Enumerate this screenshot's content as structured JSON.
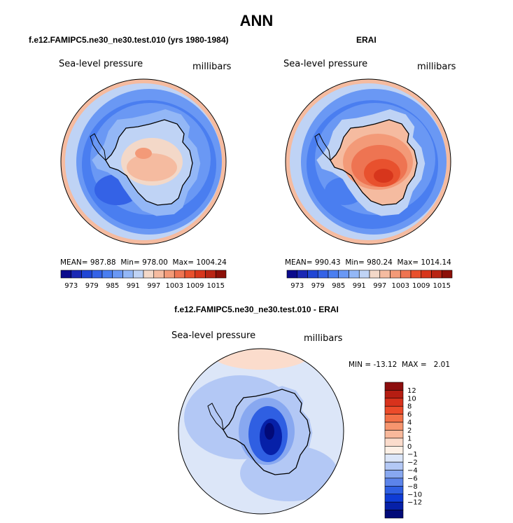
{
  "chart_data": {
    "type": "heatmap",
    "title": "ANN",
    "panels": [
      {
        "title": "f.e12.FAMIPC5.ne30_ne30.test.010 (yrs 1980-1984)",
        "variable": "Sea-level pressure",
        "units": "millibars",
        "mean_label": "MEAN=",
        "mean": "987.88",
        "min_label": "Min=",
        "min": "978.00",
        "max_label": "Max=",
        "max": "1004.24"
      },
      {
        "title": "ERAI",
        "variable": "Sea-level pressure",
        "units": "millibars",
        "mean_label": "MEAN=",
        "mean": "990.43",
        "min_label": "Min=",
        "min": "980.24",
        "max_label": "Max=",
        "max": "1014.14"
      },
      {
        "title": "f.e12.FAMIPC5.ne30_ne30.test.010 - ERAI",
        "variable": "Sea-level pressure",
        "units": "millibars",
        "min_label": "MIN =",
        "min": "-13.12",
        "max_label": "MAX =",
        "max": "2.01"
      }
    ],
    "colorbar_main": {
      "labels": [
        "973",
        "979",
        "985",
        "991",
        "997",
        "1003",
        "1009",
        "1015"
      ],
      "levels": [
        970,
        973,
        976,
        979,
        982,
        985,
        988,
        991,
        994,
        997,
        1000,
        1003,
        1006,
        1009,
        1012,
        1015,
        1018
      ],
      "colors": [
        "#0a0a8c",
        "#1a28b4",
        "#2046d4",
        "#3462e6",
        "#4a7ef0",
        "#6a98f4",
        "#93b7f6",
        "#bfd3f5",
        "#f3d8c8",
        "#f5bba0",
        "#f39a78",
        "#ee7452",
        "#e8512e",
        "#d7361c",
        "#b92514",
        "#8c1008"
      ]
    },
    "colorbar_diff": {
      "labels": [
        "12",
        "10",
        "8",
        "6",
        "4",
        "2",
        "1",
        "0",
        "−1",
        "−2",
        "−4",
        "−6",
        "−8",
        "−10",
        "−12"
      ],
      "colors": [
        "#8c0d0d",
        "#b51d12",
        "#d8321c",
        "#ec4b2a",
        "#f37047",
        "#f6956e",
        "#f8b89b",
        "#fbdccc",
        "#fdf0e6",
        "#dce6f8",
        "#b3c8f5",
        "#88a8f0",
        "#5c84ea",
        "#2f5fe2",
        "#0f3cd6",
        "#0620a8",
        "#020a78"
      ]
    }
  }
}
